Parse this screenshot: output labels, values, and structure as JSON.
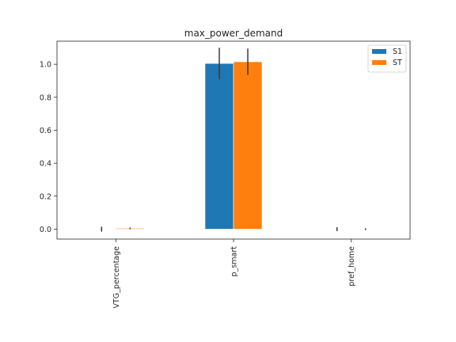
{
  "chart_data": {
    "type": "bar",
    "title": "max_power_demand",
    "xlabel": "",
    "ylabel": "",
    "categories": [
      "VTG_percentage",
      "p_smart",
      "pref_home"
    ],
    "series": [
      {
        "name": "S1",
        "color": "#1f77b4",
        "values": [
          0.0,
          1.005,
          0.0
        ],
        "error": [
          0.015,
          0.095,
          0.012
        ]
      },
      {
        "name": "ST",
        "color": "#ff7f0e",
        "values": [
          0.005,
          1.015,
          0.0
        ],
        "error": [
          0.005,
          0.08,
          0.005
        ]
      }
    ],
    "ylim": [
      -0.06,
      1.14
    ],
    "yticks": [
      0.0,
      0.2,
      0.4,
      0.6,
      0.8,
      1.0
    ],
    "ytick_labels": [
      "0.0",
      "0.2",
      "0.4",
      "0.6",
      "0.8",
      "1.0"
    ],
    "grid": false,
    "legend_position": "top-right"
  }
}
